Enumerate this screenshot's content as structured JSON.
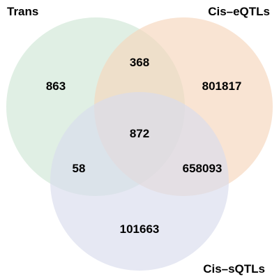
{
  "diagram": {
    "type": "venn-3",
    "sets": [
      {
        "key": "trans",
        "label": "Trans",
        "color": "#cfe6d5"
      },
      {
        "key": "cis_eqtls",
        "label": "Cis–eQTLs",
        "color": "#f6d5bc"
      },
      {
        "key": "cis_sqtls",
        "label": "Cis–sQTLs",
        "color": "#d8dbec"
      }
    ],
    "regions": {
      "trans_only": "863",
      "cis_eqtls_only": "801817",
      "cis_sqtls_only": "101663",
      "trans_and_cis_eqtls": "368",
      "trans_and_cis_sqtls": "58",
      "cis_eqtls_and_cis_sqtls": "658093",
      "all_three": "872"
    },
    "opacity": 0.65
  }
}
